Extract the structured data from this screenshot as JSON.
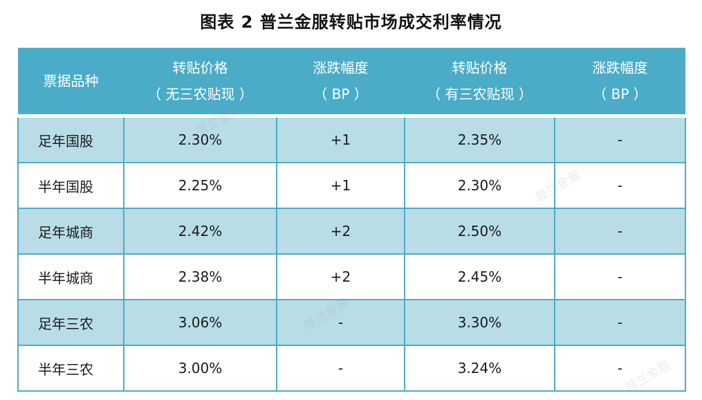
{
  "title": "图表 2  普兰金服转贴市场成交利率情况",
  "table": {
    "headers": [
      {
        "line1": "票据品种",
        "line2": ""
      },
      {
        "line1": "转贴价格",
        "line2": "（ 无三农贴现 ）"
      },
      {
        "line1": "涨跌幅度",
        "line2": "（ BP ）"
      },
      {
        "line1": "转贴价格",
        "line2": "（ 有三农贴现 ）"
      },
      {
        "line1": "涨跌幅度",
        "line2": "（ BP ）"
      }
    ],
    "rows": [
      [
        "足年国股",
        "2.30%",
        "+1",
        "2.35%",
        "-"
      ],
      [
        "半年国股",
        "2.25%",
        "+1",
        "2.30%",
        "-"
      ],
      [
        "足年城商",
        "2.42%",
        "+2",
        "2.50%",
        "-"
      ],
      [
        "半年城商",
        "2.38%",
        "+2",
        "2.45%",
        "-"
      ],
      [
        "足年三农",
        "3.06%",
        "-",
        "3.30%",
        "-"
      ],
      [
        "半年三农",
        "3.00%",
        "-",
        "3.24%",
        "-"
      ]
    ]
  },
  "watermark": "普兰金服",
  "colors": {
    "header": "#4aacc6",
    "shade": "#b8dde7"
  }
}
